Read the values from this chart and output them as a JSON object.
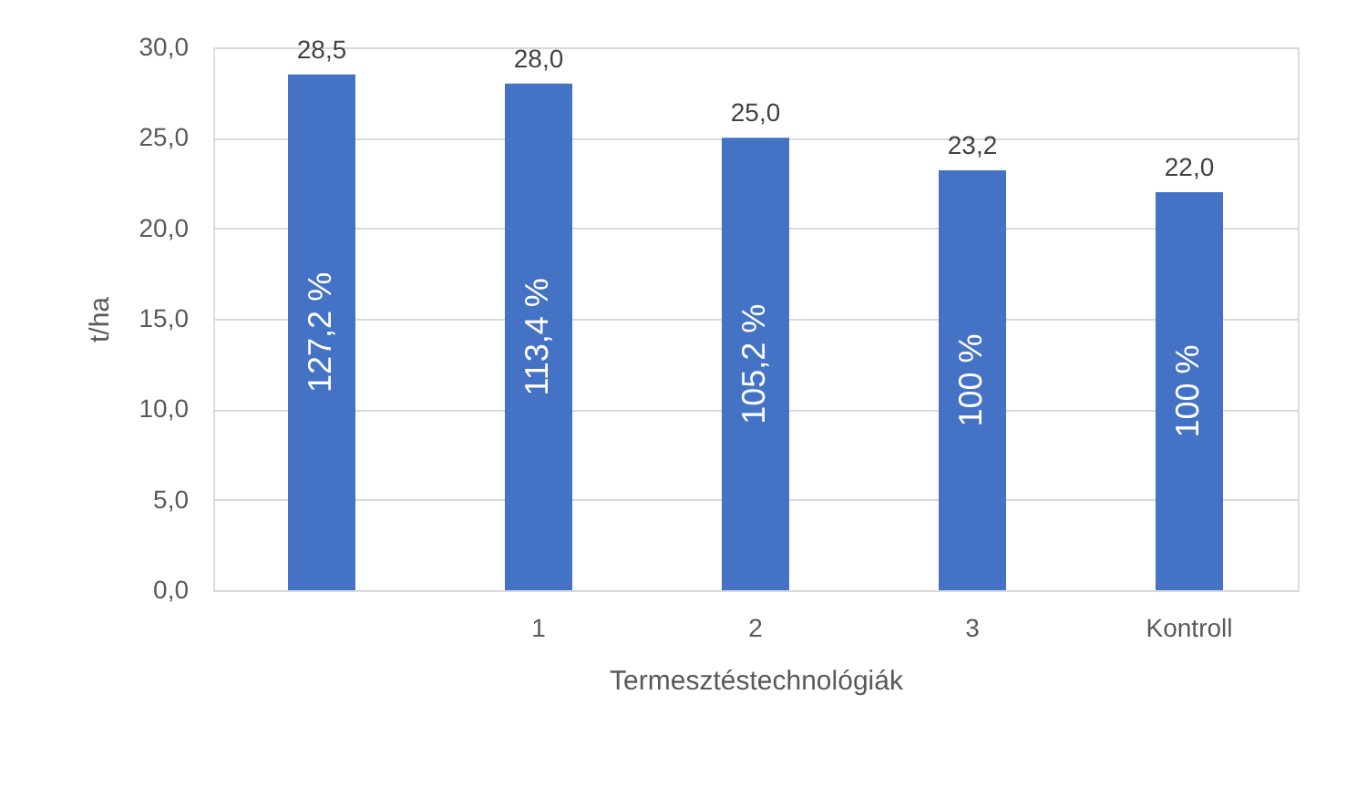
{
  "chart_data": {
    "type": "bar",
    "xlabel": "Termesztéstechnológiák",
    "ylabel": "t/ha",
    "categories": [
      null,
      "1",
      "2",
      "3",
      "Kontroll"
    ],
    "values": [
      28.5,
      28.0,
      25.0,
      23.2,
      22.0
    ],
    "color": "#4472c4",
    "value_labels": [
      "28,5",
      "28,0",
      "25,0",
      "23,2",
      "22,0"
    ],
    "ylim": [
      0,
      30
    ],
    "yticks": [
      {
        "value": 0,
        "label": "0,0"
      },
      {
        "value": 5,
        "label": "5,0"
      },
      {
        "value": 10,
        "label": "10,0"
      },
      {
        "value": 15,
        "label": "15,0"
      },
      {
        "value": 20,
        "label": "20,0"
      },
      {
        "value": 25,
        "label": "25,0"
      },
      {
        "value": 30,
        "label": "30,0"
      }
    ],
    "grid": "y",
    "annotations": [
      "127,2 %",
      "113,4 %",
      "105,2 %",
      "100 %",
      "100 %"
    ]
  }
}
